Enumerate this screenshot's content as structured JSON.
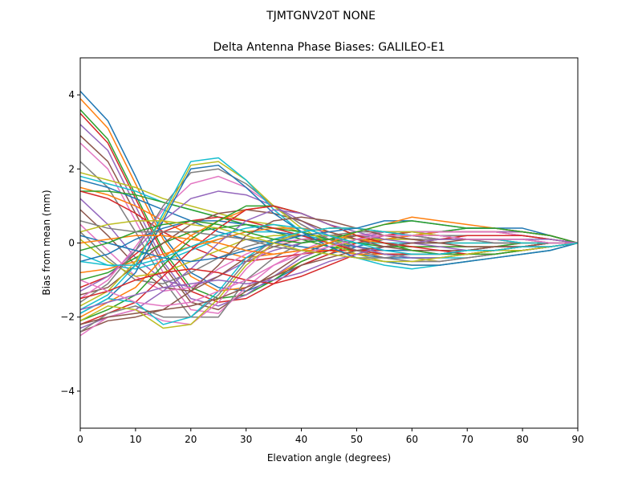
{
  "chart_data": {
    "type": "line",
    "suptitle": "TJMTGNV20T      NONE",
    "title": "Delta Antenna Phase Biases: GALILEO-E1",
    "xlabel": "Elevation angle (degrees)",
    "ylabel": "Bias from mean (mm)",
    "xlim": [
      0,
      90
    ],
    "ylim": [
      -5,
      5
    ],
    "xticks": [
      0,
      10,
      20,
      30,
      40,
      50,
      60,
      70,
      80,
      90
    ],
    "yticks": [
      -4,
      -2,
      0,
      2,
      4
    ],
    "ytick_labels": [
      "−4",
      "−2",
      "0",
      "2",
      "4"
    ],
    "grid": false,
    "legend": "none",
    "colors": [
      "#1f77b4",
      "#ff7f0e",
      "#2ca02c",
      "#d62728",
      "#9467bd",
      "#8c564b",
      "#e377c2",
      "#7f7f7f",
      "#bcbd22",
      "#17becf"
    ],
    "x": [
      0,
      5,
      10,
      15,
      20,
      25,
      30,
      35,
      40,
      45,
      50,
      55,
      60,
      65,
      70,
      75,
      80,
      85,
      90
    ],
    "series": [
      {
        "values": [
          4.1,
          3.3,
          1.8,
          0.2,
          -0.8,
          -1.2,
          -1.3,
          -1.0,
          -0.6,
          -0.3,
          -0.1,
          0.1,
          0.2,
          0.3,
          0.4,
          0.4,
          0.4,
          0.2,
          0.0
        ]
      },
      {
        "values": [
          3.9,
          3.1,
          1.6,
          0.1,
          -0.9,
          -1.3,
          -1.2,
          -0.9,
          -0.5,
          -0.2,
          0.0,
          0.1,
          0.2,
          0.3,
          0.3,
          0.3,
          0.3,
          0.2,
          0.0
        ]
      },
      {
        "values": [
          3.6,
          2.8,
          1.3,
          -0.2,
          -1.2,
          -1.5,
          -1.4,
          -1.0,
          -0.5,
          -0.2,
          0.1,
          0.2,
          0.3,
          0.3,
          0.4,
          0.4,
          0.3,
          0.2,
          0.0
        ]
      },
      {
        "values": [
          3.5,
          2.7,
          1.2,
          -0.3,
          -1.3,
          -1.6,
          -1.5,
          -1.1,
          -0.6,
          -0.3,
          0.0,
          0.2,
          0.3,
          0.3,
          0.3,
          0.3,
          0.3,
          0.2,
          0.0
        ]
      },
      {
        "values": [
          3.2,
          2.5,
          1.0,
          -0.5,
          -1.5,
          -1.7,
          -1.4,
          -0.9,
          -0.4,
          -0.1,
          0.1,
          0.3,
          0.3,
          0.3,
          0.3,
          0.3,
          0.3,
          0.2,
          0.0
        ]
      },
      {
        "values": [
          2.9,
          2.2,
          0.8,
          -0.6,
          -1.6,
          -1.8,
          -1.3,
          -0.8,
          -0.3,
          0.0,
          0.2,
          0.3,
          0.3,
          0.3,
          0.3,
          0.3,
          0.2,
          0.1,
          0.0
        ]
      },
      {
        "values": [
          2.7,
          2.0,
          0.6,
          -0.8,
          -1.8,
          -1.9,
          -1.2,
          -0.6,
          -0.2,
          0.1,
          0.2,
          0.3,
          0.3,
          0.3,
          0.3,
          0.3,
          0.2,
          0.1,
          0.0
        ]
      },
      {
        "values": [
          2.2,
          1.5,
          0.3,
          -1.0,
          -2.0,
          -2.0,
          -1.0,
          -0.4,
          0.0,
          0.2,
          0.3,
          0.3,
          0.3,
          0.2,
          0.2,
          0.2,
          0.2,
          0.1,
          0.0
        ]
      },
      {
        "values": [
          1.9,
          1.7,
          1.5,
          1.2,
          1.0,
          0.8,
          0.6,
          0.5,
          0.3,
          0.1,
          -0.1,
          -0.3,
          -0.4,
          -0.5,
          -0.4,
          -0.3,
          -0.2,
          -0.1,
          0.0
        ]
      },
      {
        "values": [
          1.8,
          1.6,
          1.4,
          1.1,
          0.9,
          0.7,
          0.5,
          0.4,
          0.2,
          0.0,
          -0.2,
          -0.3,
          -0.4,
          -0.4,
          -0.4,
          -0.3,
          -0.2,
          -0.1,
          0.0
        ]
      },
      {
        "values": [
          1.7,
          1.5,
          1.2,
          0.9,
          0.6,
          0.3,
          0.1,
          0.0,
          -0.1,
          -0.2,
          -0.3,
          -0.4,
          -0.4,
          -0.4,
          -0.3,
          -0.2,
          -0.2,
          -0.1,
          0.0
        ]
      },
      {
        "values": [
          1.5,
          1.3,
          1.0,
          0.6,
          0.2,
          -0.2,
          -0.4,
          -0.3,
          -0.2,
          -0.2,
          -0.3,
          -0.3,
          -0.3,
          -0.3,
          -0.3,
          -0.2,
          -0.1,
          -0.1,
          0.0
        ]
      },
      {
        "values": [
          1.4,
          1.4,
          1.3,
          1.1,
          0.9,
          0.7,
          0.5,
          0.3,
          0.1,
          -0.1,
          -0.2,
          -0.3,
          -0.3,
          -0.3,
          -0.2,
          -0.2,
          -0.1,
          0.0,
          0.0
        ]
      },
      {
        "values": [
          1.4,
          1.2,
          0.8,
          0.3,
          -0.1,
          -0.4,
          -0.5,
          -0.4,
          -0.3,
          -0.2,
          -0.2,
          -0.2,
          -0.2,
          -0.2,
          -0.2,
          -0.1,
          -0.1,
          0.0,
          0.0
        ]
      },
      {
        "values": [
          1.2,
          0.5,
          -0.4,
          -1.0,
          -1.2,
          -0.9,
          -0.5,
          -0.2,
          0.0,
          0.1,
          0.2,
          0.2,
          0.2,
          0.2,
          0.1,
          0.1,
          0.1,
          0.0,
          0.0
        ]
      },
      {
        "values": [
          0.9,
          0.2,
          -0.6,
          -1.2,
          -1.3,
          -0.9,
          -0.4,
          -0.1,
          0.1,
          0.1,
          0.2,
          0.2,
          0.2,
          0.1,
          0.1,
          0.1,
          0.0,
          0.0,
          0.0
        ]
      },
      {
        "values": [
          0.5,
          -0.2,
          -0.9,
          -1.3,
          -1.2,
          -0.7,
          -0.3,
          0.0,
          0.1,
          0.2,
          0.2,
          0.2,
          0.1,
          0.1,
          0.1,
          0.1,
          0.0,
          0.0,
          0.0
        ]
      },
      {
        "values": [
          0.3,
          -0.4,
          -1.0,
          -1.1,
          -0.8,
          -0.4,
          -0.1,
          0.1,
          0.2,
          0.2,
          0.2,
          0.1,
          0.1,
          0.1,
          0.1,
          0.0,
          0.0,
          0.0,
          0.0
        ]
      },
      {
        "values": [
          0.1,
          -0.5,
          -0.9,
          -0.8,
          -0.5,
          -0.2,
          0.1,
          0.2,
          0.2,
          0.2,
          0.1,
          0.1,
          0.1,
          0.0,
          0.0,
          0.0,
          0.0,
          0.0,
          0.0
        ]
      },
      {
        "values": [
          -0.3,
          -0.6,
          -0.7,
          -0.5,
          -0.2,
          0.1,
          0.3,
          0.3,
          0.2,
          0.1,
          0.0,
          0.0,
          0.0,
          0.0,
          0.0,
          0.0,
          0.0,
          0.0,
          0.0
        ]
      },
      {
        "values": [
          -0.5,
          -0.3,
          0.1,
          0.4,
          0.6,
          0.6,
          0.5,
          0.3,
          0.2,
          0.0,
          -0.1,
          -0.2,
          -0.2,
          -0.2,
          -0.2,
          -0.1,
          -0.1,
          0.0,
          0.0
        ]
      },
      {
        "values": [
          -0.8,
          -0.7,
          -0.5,
          -0.3,
          -0.1,
          0.1,
          0.3,
          0.4,
          0.4,
          0.3,
          0.1,
          0.0,
          -0.1,
          -0.1,
          -0.1,
          -0.1,
          0.0,
          0.0,
          0.0
        ]
      },
      {
        "values": [
          -1.0,
          -0.8,
          -0.4,
          0.0,
          0.3,
          0.4,
          0.5,
          0.4,
          0.3,
          0.1,
          0.0,
          -0.1,
          -0.1,
          -0.1,
          -0.1,
          -0.1,
          0.0,
          0.0,
          0.0
        ]
      },
      {
        "values": [
          -1.2,
          -0.9,
          -0.3,
          0.3,
          0.6,
          0.7,
          0.6,
          0.4,
          0.2,
          0.0,
          -0.2,
          -0.3,
          -0.3,
          -0.3,
          -0.2,
          -0.2,
          -0.1,
          0.0,
          0.0
        ]
      },
      {
        "values": [
          -1.3,
          -0.9,
          -0.2,
          0.6,
          1.2,
          1.4,
          1.3,
          1.0,
          0.6,
          0.2,
          -0.1,
          -0.3,
          -0.4,
          -0.4,
          -0.3,
          -0.2,
          -0.2,
          -0.1,
          0.0
        ]
      },
      {
        "values": [
          -1.4,
          -1.2,
          -0.6,
          0.0,
          0.5,
          0.8,
          0.9,
          0.8,
          0.6,
          0.3,
          0.1,
          -0.1,
          -0.2,
          -0.2,
          -0.2,
          -0.1,
          -0.1,
          0.0,
          0.0
        ]
      },
      {
        "values": [
          -1.5,
          -1.0,
          -0.1,
          0.9,
          1.6,
          1.8,
          1.5,
          1.0,
          0.5,
          0.1,
          -0.2,
          -0.4,
          -0.5,
          -0.5,
          -0.4,
          -0.3,
          -0.2,
          -0.1,
          0.0
        ]
      },
      {
        "values": [
          -1.6,
          -1.1,
          -0.2,
          1.0,
          1.9,
          2.0,
          1.6,
          1.0,
          0.5,
          0.1,
          -0.2,
          -0.4,
          -0.5,
          -0.5,
          -0.4,
          -0.3,
          -0.2,
          -0.1,
          0.0
        ]
      },
      {
        "values": [
          -1.7,
          -1.3,
          -0.5,
          0.7,
          2.1,
          2.2,
          1.7,
          1.0,
          0.4,
          0.0,
          -0.3,
          -0.5,
          -0.6,
          -0.6,
          -0.5,
          -0.4,
          -0.3,
          -0.2,
          0.0
        ]
      },
      {
        "values": [
          -1.8,
          -1.4,
          -0.6,
          0.8,
          2.2,
          2.3,
          1.7,
          0.9,
          0.3,
          -0.1,
          -0.4,
          -0.6,
          -0.7,
          -0.6,
          -0.5,
          -0.4,
          -0.3,
          -0.2,
          0.0
        ]
      },
      {
        "values": [
          -1.9,
          -1.5,
          -0.8,
          0.6,
          2.0,
          2.1,
          1.5,
          0.8,
          0.3,
          -0.1,
          -0.4,
          -0.5,
          -0.6,
          -0.6,
          -0.5,
          -0.4,
          -0.3,
          -0.2,
          0.0
        ]
      },
      {
        "values": [
          -2.0,
          -1.6,
          -1.2,
          -0.4,
          0.2,
          0.6,
          0.9,
          1.0,
          0.8,
          0.5,
          0.2,
          0.0,
          -0.2,
          -0.3,
          -0.3,
          -0.3,
          -0.2,
          -0.1,
          0.0
        ]
      },
      {
        "values": [
          -2.1,
          -1.8,
          -1.4,
          -0.6,
          0.1,
          0.6,
          1.0,
          1.0,
          0.8,
          0.5,
          0.2,
          0.0,
          -0.2,
          -0.3,
          -0.3,
          -0.3,
          -0.2,
          -0.1,
          0.0
        ]
      },
      {
        "values": [
          -2.2,
          -1.9,
          -1.6,
          -0.9,
          -0.2,
          0.4,
          0.9,
          1.0,
          0.8,
          0.5,
          0.2,
          0.0,
          -0.1,
          -0.2,
          -0.3,
          -0.2,
          -0.2,
          -0.1,
          0.0
        ]
      },
      {
        "values": [
          -2.3,
          -2.0,
          -1.8,
          -1.3,
          -0.7,
          0.0,
          0.6,
          0.9,
          0.8,
          0.5,
          0.3,
          0.1,
          0.0,
          -0.1,
          -0.2,
          -0.2,
          -0.2,
          -0.1,
          0.0
        ]
      },
      {
        "values": [
          -2.4,
          -2.1,
          -2.0,
          -1.8,
          -1.3,
          -0.6,
          0.2,
          0.6,
          0.7,
          0.6,
          0.4,
          0.2,
          0.1,
          0.0,
          -0.1,
          -0.1,
          -0.1,
          -0.1,
          0.0
        ]
      },
      {
        "values": [
          -2.5,
          -2.0,
          -1.8,
          -2.1,
          -2.2,
          -1.6,
          -0.7,
          0.0,
          0.3,
          0.4,
          0.4,
          0.3,
          0.2,
          0.1,
          0.1,
          0.0,
          0.0,
          0.0,
          0.0
        ]
      },
      {
        "values": [
          -2.4,
          -1.9,
          -1.7,
          -2.0,
          -2.0,
          -1.4,
          -0.5,
          0.1,
          0.3,
          0.4,
          0.4,
          0.3,
          0.2,
          0.1,
          0.1,
          0.0,
          0.0,
          0.0,
          0.0
        ]
      },
      {
        "values": [
          -2.1,
          -1.7,
          -1.8,
          -2.3,
          -2.2,
          -1.5,
          -0.6,
          0.0,
          0.3,
          0.4,
          0.4,
          0.3,
          0.3,
          0.2,
          0.1,
          0.1,
          0.0,
          0.0,
          0.0
        ]
      },
      {
        "values": [
          -1.9,
          -1.5,
          -1.6,
          -2.2,
          -2.0,
          -1.3,
          -0.4,
          0.1,
          0.3,
          0.4,
          0.4,
          0.3,
          0.2,
          0.2,
          0.1,
          0.1,
          0.0,
          0.0,
          0.0
        ]
      },
      {
        "values": [
          0.2,
          0.0,
          -0.2,
          -0.4,
          -0.5,
          -0.4,
          -0.2,
          0.0,
          0.2,
          0.3,
          0.4,
          0.6,
          0.6,
          0.5,
          0.4,
          0.4,
          0.3,
          0.2,
          0.0
        ]
      },
      {
        "values": [
          0.0,
          0.1,
          0.2,
          0.2,
          0.1,
          0.0,
          -0.2,
          -0.3,
          -0.2,
          0.0,
          0.3,
          0.5,
          0.7,
          0.6,
          0.5,
          0.4,
          0.3,
          0.2,
          0.0
        ]
      },
      {
        "values": [
          -0.2,
          0.0,
          0.3,
          0.5,
          0.6,
          0.5,
          0.3,
          0.1,
          0.0,
          0.1,
          0.3,
          0.5,
          0.6,
          0.5,
          0.4,
          0.4,
          0.3,
          0.2,
          0.0
        ]
      },
      {
        "values": [
          -1.5,
          -1.3,
          -1.0,
          -0.8,
          -0.7,
          -0.8,
          -1.0,
          -1.1,
          -0.9,
          -0.6,
          -0.3,
          -0.1,
          0.0,
          0.1,
          0.2,
          0.2,
          0.2,
          0.1,
          0.0
        ]
      },
      {
        "values": [
          -1.8,
          -1.6,
          -1.4,
          -1.2,
          -1.1,
          -1.0,
          -1.1,
          -1.0,
          -0.8,
          -0.5,
          -0.3,
          -0.1,
          0.0,
          0.1,
          0.1,
          0.1,
          0.1,
          0.1,
          0.0
        ]
      },
      {
        "values": [
          -2.2,
          -2.0,
          -1.9,
          -1.8,
          -1.7,
          -1.5,
          -1.2,
          -0.9,
          -0.6,
          -0.4,
          -0.2,
          -0.1,
          0.0,
          0.0,
          0.1,
          0.1,
          0.1,
          0.0,
          0.0
        ]
      },
      {
        "values": [
          -1.0,
          -1.3,
          -1.6,
          -1.7,
          -1.6,
          -1.3,
          -1.0,
          -0.6,
          -0.3,
          -0.1,
          0.1,
          0.2,
          0.2,
          0.2,
          0.1,
          0.1,
          0.1,
          0.0,
          0.0
        ]
      },
      {
        "values": [
          0.6,
          0.4,
          0.3,
          0.3,
          0.3,
          0.2,
          0.1,
          -0.1,
          -0.2,
          -0.3,
          -0.4,
          -0.4,
          -0.3,
          -0.3,
          -0.2,
          -0.2,
          -0.1,
          -0.1,
          0.0
        ]
      },
      {
        "values": [
          0.3,
          0.5,
          0.6,
          0.6,
          0.5,
          0.4,
          0.2,
          0.0,
          -0.2,
          -0.3,
          -0.4,
          -0.5,
          -0.5,
          -0.4,
          -0.3,
          -0.2,
          -0.2,
          -0.1,
          0.0
        ]
      },
      {
        "values": [
          -0.5,
          -0.6,
          -0.6,
          -0.4,
          -0.1,
          0.2,
          0.4,
          0.5,
          0.4,
          0.2,
          0.0,
          -0.2,
          -0.3,
          -0.3,
          -0.2,
          -0.2,
          -0.1,
          -0.1,
          0.0
        ]
      }
    ]
  }
}
